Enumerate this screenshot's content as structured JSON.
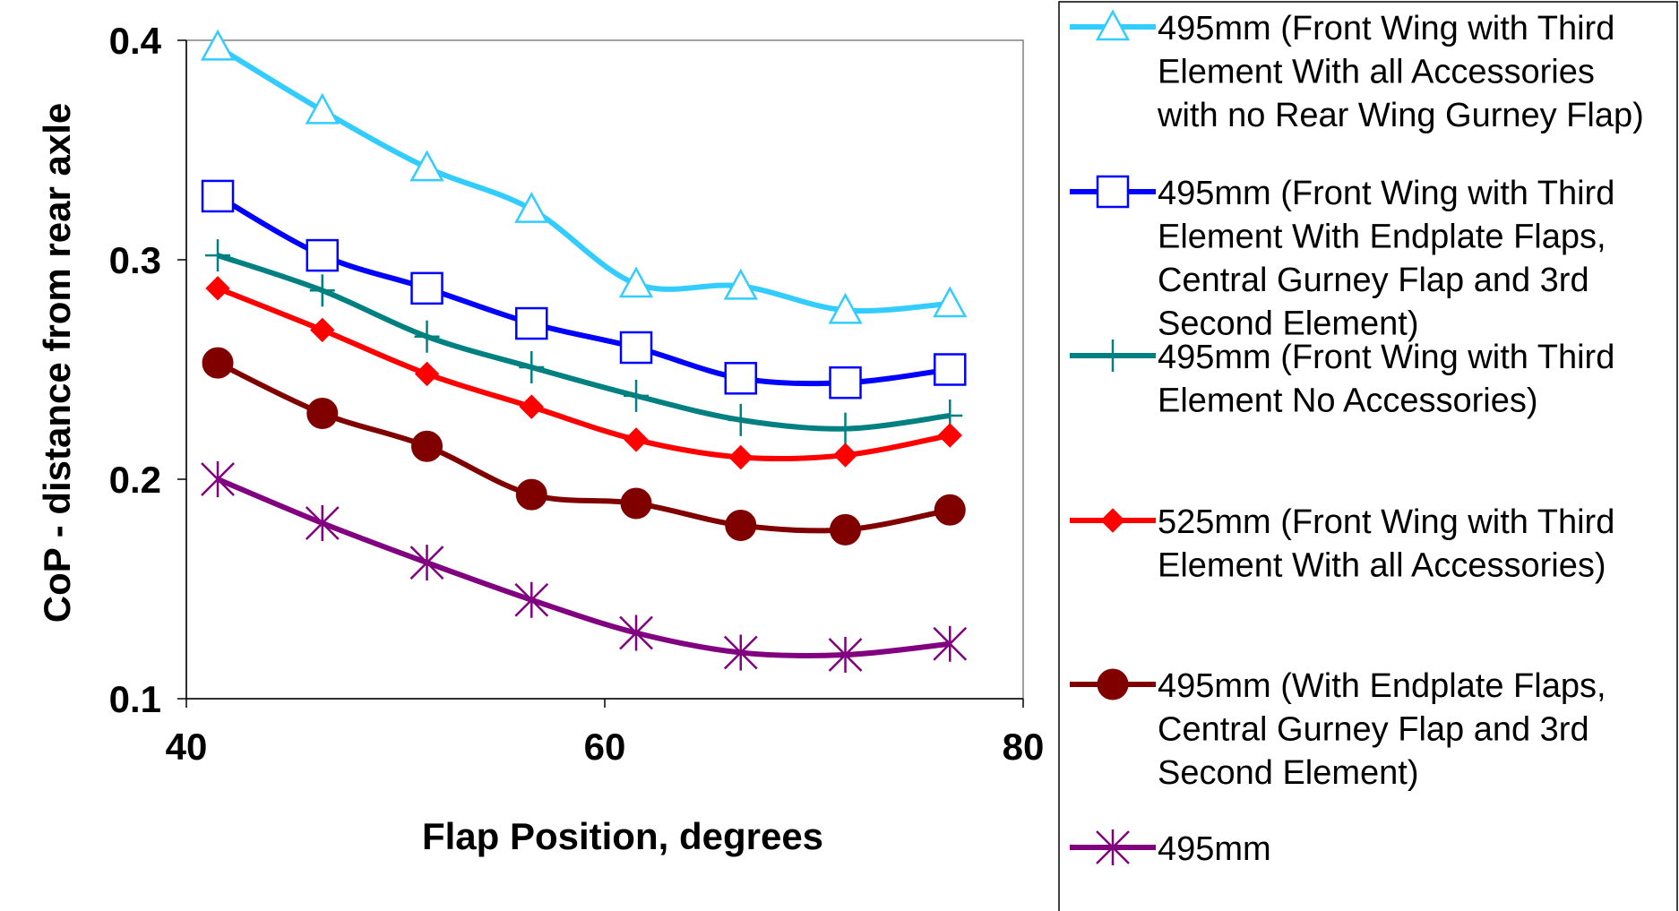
{
  "chart_data": {
    "type": "line",
    "xlabel": "Flap Position, degrees",
    "ylabel": "CoP -  distance from rear axle",
    "xlim": [
      40,
      80
    ],
    "ylim": [
      0.1,
      0.4
    ],
    "xticks": [
      "40",
      "60",
      "80"
    ],
    "yticks": [
      "0.1",
      "0.2",
      "0.3",
      "0.4"
    ],
    "grid": false,
    "legend_position": "right",
    "series": [
      {
        "name": "495mm (Front Wing with Third Element With all Accessories with no Rear Wing Gurney Flap)",
        "legend_lines": [
          "495mm (Front Wing with Third",
          "Element With all Accessories",
          "with no Rear Wing Gurney Flap)"
        ],
        "color": "#33CCFF",
        "marker": "triangle",
        "x": [
          41.5,
          46.5,
          51.5,
          56.5,
          61.5,
          66.5,
          71.5,
          76.5
        ],
        "y": [
          0.397,
          0.368,
          0.342,
          0.323,
          0.289,
          0.288,
          0.277,
          0.28
        ]
      },
      {
        "name": "495mm (Front Wing with Third Element With Endplate Flaps, Central Gurney Flap and 3rd Second Element)",
        "legend_lines": [
          "495mm (Front Wing with Third",
          "Element With Endplate Flaps,",
          "Central Gurney Flap and 3rd",
          "Second Element)"
        ],
        "color": "#0000FF",
        "marker": "square",
        "x": [
          41.5,
          46.5,
          51.5,
          56.5,
          61.5,
          66.5,
          71.5,
          76.5
        ],
        "y": [
          0.329,
          0.302,
          0.287,
          0.271,
          0.26,
          0.246,
          0.244,
          0.25
        ]
      },
      {
        "name": "495mm (Front Wing with Third Element No Accessories)",
        "legend_lines": [
          "495mm (Front Wing with Third",
          "Element No Accessories)"
        ],
        "color": "#008080",
        "marker": "plus",
        "x": [
          41.5,
          46.5,
          51.5,
          56.5,
          61.5,
          66.5,
          71.5,
          76.5
        ],
        "y": [
          0.302,
          0.286,
          0.265,
          0.251,
          0.238,
          0.227,
          0.223,
          0.229
        ]
      },
      {
        "name": "525mm (Front Wing with Third Element With all Accessories)",
        "legend_lines": [
          "525mm (Front Wing with Third",
          "Element With all Accessories)"
        ],
        "color": "#FF0000",
        "marker": "diamond",
        "x": [
          41.5,
          46.5,
          51.5,
          56.5,
          61.5,
          66.5,
          71.5,
          76.5
        ],
        "y": [
          0.287,
          0.268,
          0.248,
          0.233,
          0.218,
          0.21,
          0.211,
          0.22
        ]
      },
      {
        "name": "495mm (With Endplate Flaps, Central Gurney Flap and 3rd Second Element)",
        "legend_lines": [
          "495mm (With Endplate Flaps,",
          "Central Gurney Flap and 3rd",
          "Second Element)"
        ],
        "color": "#800000",
        "marker": "circle",
        "x": [
          41.5,
          46.5,
          51.5,
          56.5,
          61.5,
          66.5,
          71.5,
          76.5
        ],
        "y": [
          0.253,
          0.23,
          0.215,
          0.193,
          0.189,
          0.179,
          0.177,
          0.186
        ]
      },
      {
        "name": "495mm",
        "legend_lines": [
          "495mm"
        ],
        "color": "#800080",
        "marker": "asterisk",
        "x": [
          41.5,
          46.5,
          51.5,
          56.5,
          61.5,
          66.5,
          71.5,
          76.5
        ],
        "y": [
          0.2,
          0.18,
          0.162,
          0.145,
          0.13,
          0.121,
          0.12,
          0.125
        ]
      }
    ]
  }
}
